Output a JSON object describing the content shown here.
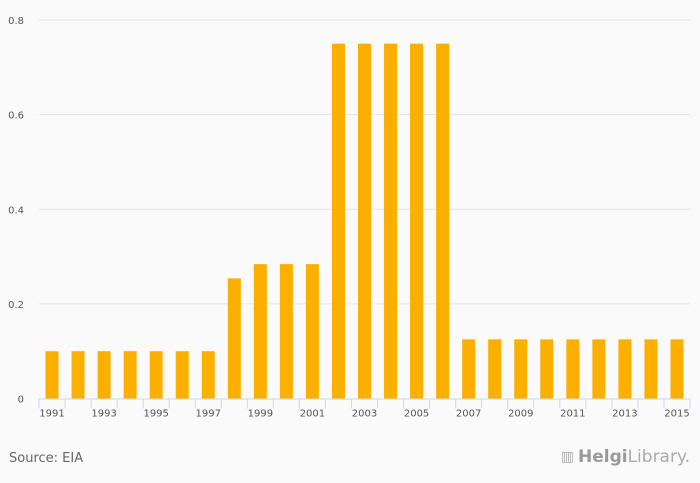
{
  "chart_data": {
    "type": "bar",
    "categories": [
      "1991",
      "1992",
      "1993",
      "1994",
      "1995",
      "1996",
      "1997",
      "1998",
      "1999",
      "2000",
      "2001",
      "2002",
      "2003",
      "2004",
      "2005",
      "2006",
      "2007",
      "2008",
      "2009",
      "2010",
      "2011",
      "2012",
      "2013",
      "2014",
      "2015"
    ],
    "values": [
      0.1,
      0.1,
      0.1,
      0.1,
      0.1,
      0.1,
      0.1,
      0.254,
      0.284,
      0.284,
      0.284,
      0.75,
      0.75,
      0.75,
      0.75,
      0.75,
      0.125,
      0.125,
      0.125,
      0.125,
      0.125,
      0.125,
      0.125,
      0.125,
      0.125
    ],
    "title": "",
    "xlabel": "",
    "ylabel": "",
    "ylim": [
      0,
      0.8
    ],
    "yticks": [
      "0",
      "0.2",
      "0.4",
      "0.6",
      "0.8"
    ],
    "ytick_values": [
      0,
      0.2,
      0.4,
      0.6,
      0.8
    ],
    "grid": true,
    "bar_color": "#fbb000"
  },
  "source": "Source: EIA",
  "logo": {
    "part1": "Helgi",
    "part2": "Library."
  }
}
